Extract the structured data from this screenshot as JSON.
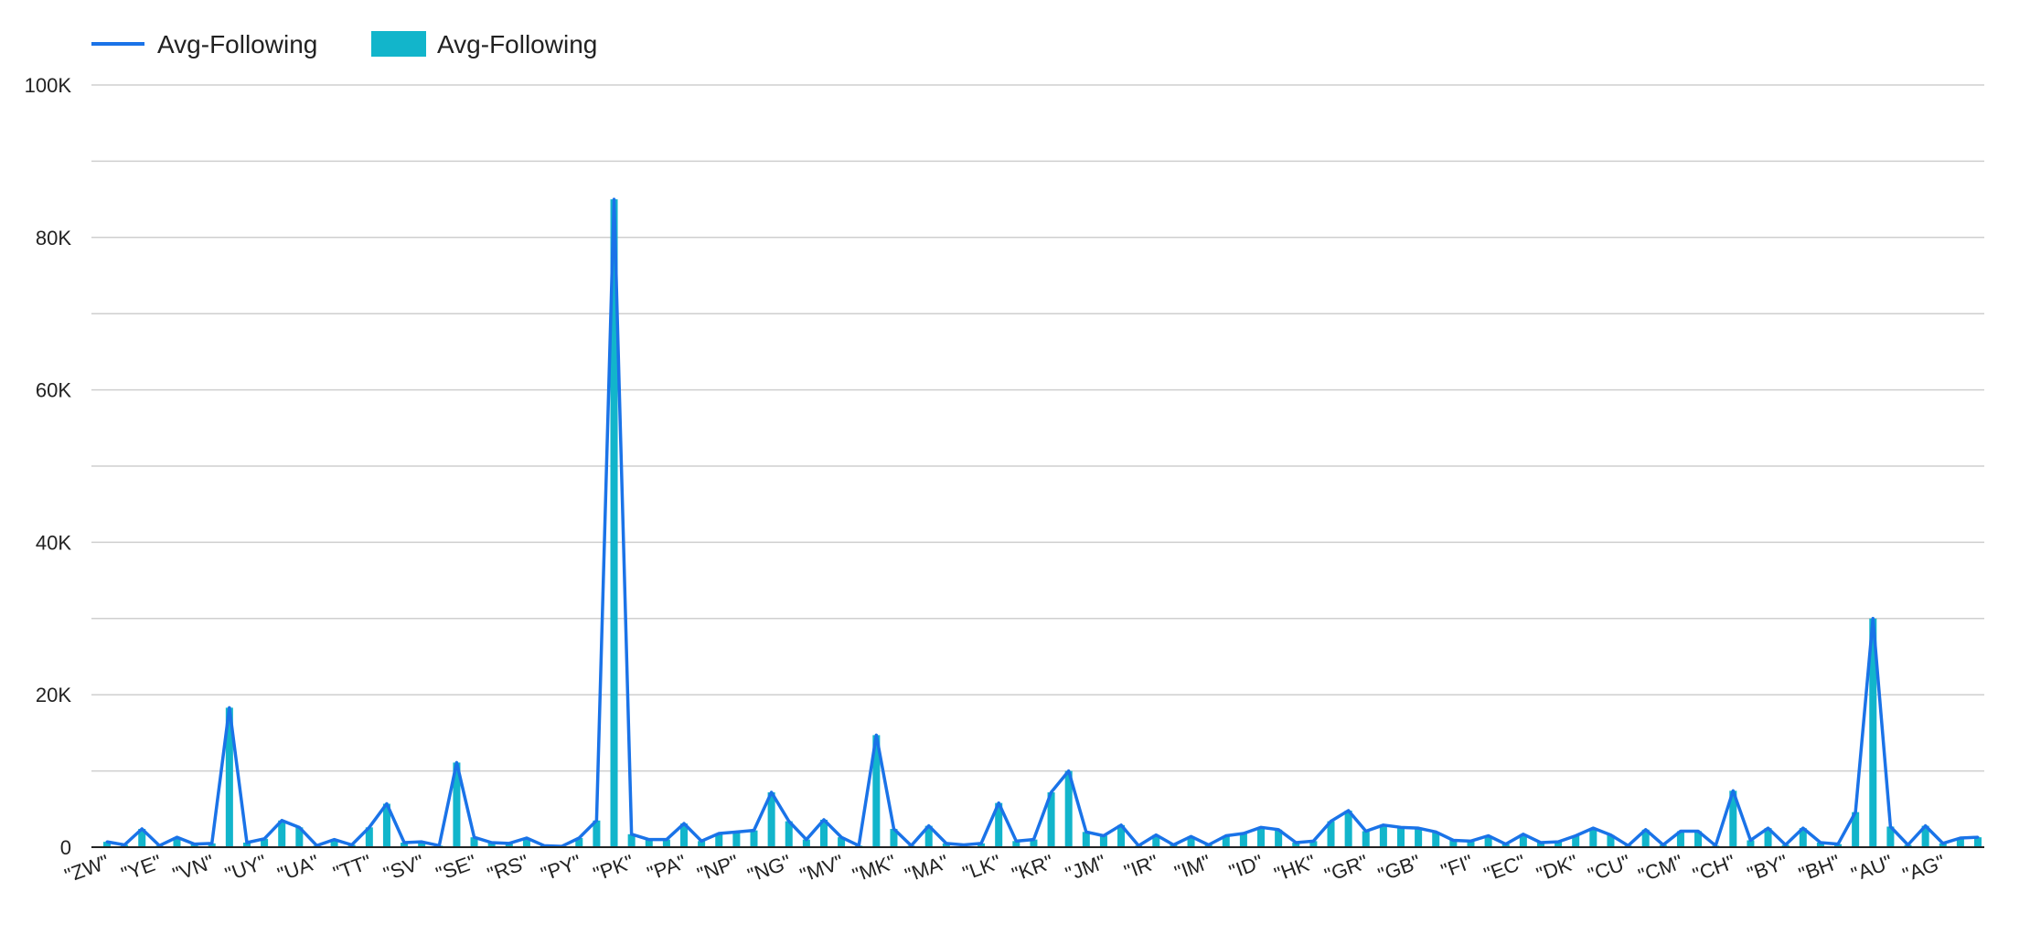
{
  "chart_data": {
    "type": "bar",
    "title": "",
    "xlabel": "",
    "ylabel": "",
    "ylim": [
      0,
      100000
    ],
    "y_ticks": [
      "0",
      "20K",
      "40K",
      "60K",
      "80K",
      "100K"
    ],
    "grid": true,
    "legend_position": "top-left",
    "legend": [
      {
        "label": "Avg-Following",
        "kind": "line",
        "color": "#1a73e8"
      },
      {
        "label": "Avg-Following",
        "kind": "bar",
        "color": "#12b5cb"
      }
    ],
    "x_tick_labels": [
      "\"ZW\"",
      "\"YE\"",
      "\"VN\"",
      "\"UY\"",
      "\"UA\"",
      "\"TT\"",
      "\"SV\"",
      "\"SE\"",
      "\"RS\"",
      "\"PY\"",
      "\"PK\"",
      "\"PA\"",
      "\"NP\"",
      "\"NG\"",
      "\"MV\"",
      "\"MK\"",
      "\"MA\"",
      "\"LK\"",
      "\"KR\"",
      "\"JM\"",
      "\"IR\"",
      "\"IM\"",
      "\"ID\"",
      "\"HK\"",
      "\"GR\"",
      "\"GB\"",
      "\"FI\"",
      "\"EC\"",
      "\"DK\"",
      "\"CU\"",
      "\"CM\"",
      "\"CH\"",
      "\"BY\"",
      "\"BH\"",
      "\"AU\"",
      "\"AG\""
    ],
    "x_tick_every": 3,
    "series": [
      {
        "name": "Avg-Following",
        "type": "line",
        "color": "#1a73e8",
        "values": [
          700,
          300,
          2400,
          200,
          1300,
          400,
          500,
          18300,
          600,
          1100,
          3500,
          2600,
          200,
          1000,
          300,
          2600,
          5700,
          600,
          700,
          200,
          11100,
          1300,
          600,
          500,
          1200,
          200,
          100,
          1200,
          3500,
          85000,
          1700,
          1000,
          1000,
          3100,
          800,
          1800,
          2000,
          2200,
          7200,
          3400,
          1000,
          3600,
          1300,
          200,
          14700,
          2400,
          200,
          2800,
          500,
          300,
          500,
          5800,
          800,
          1000,
          7200,
          10000,
          2000,
          1500,
          2900,
          200,
          1600,
          300,
          1400,
          300,
          1500,
          1800,
          2600,
          2300,
          600,
          800,
          3400,
          4800,
          2100,
          2900,
          2600,
          2500,
          2000,
          900,
          800,
          1500,
          400,
          1700,
          600,
          700,
          1500,
          2500,
          1600,
          200,
          2300,
          300,
          2100,
          2100,
          200,
          7400,
          900,
          2500,
          300,
          2500,
          600,
          400,
          4600,
          30000,
          2700,
          300,
          2800,
          500,
          1200,
          1300
        ]
      },
      {
        "name": "Avg-Following",
        "type": "bar",
        "color": "#12b5cb",
        "values": [
          700,
          300,
          2400,
          200,
          1300,
          400,
          500,
          18300,
          600,
          1100,
          3500,
          2600,
          200,
          1000,
          300,
          2600,
          5700,
          600,
          700,
          200,
          11100,
          1300,
          600,
          500,
          1200,
          200,
          100,
          1200,
          3500,
          85000,
          1700,
          1000,
          1000,
          3100,
          800,
          1800,
          2000,
          2200,
          7200,
          3400,
          1000,
          3600,
          1300,
          200,
          14700,
          2400,
          200,
          2800,
          500,
          300,
          500,
          5800,
          800,
          1000,
          7200,
          10000,
          2000,
          1500,
          2900,
          200,
          1600,
          300,
          1400,
          300,
          1500,
          1800,
          2600,
          2300,
          600,
          800,
          3400,
          4800,
          2100,
          2900,
          2600,
          2500,
          2000,
          900,
          800,
          1500,
          400,
          1700,
          600,
          700,
          1500,
          2500,
          1600,
          200,
          2300,
          300,
          2100,
          2100,
          200,
          7400,
          900,
          2500,
          300,
          2500,
          600,
          400,
          4600,
          30000,
          2700,
          300,
          2800,
          500,
          1200,
          1300
        ]
      }
    ]
  }
}
